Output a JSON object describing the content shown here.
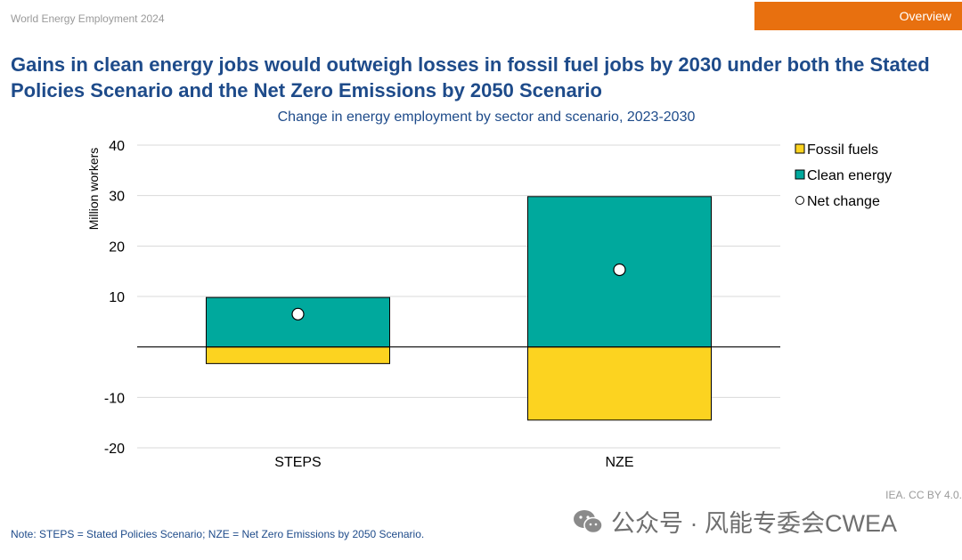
{
  "header": {
    "report_name": "World Energy Employment 2024",
    "tab_label": "Overview"
  },
  "title": "Gains in clean energy jobs would outweigh losses in fossil fuel jobs by 2030 under both the Stated Policies Scenario and the Net Zero Emissions by 2050 Scenario",
  "footer": {
    "note": "Note: STEPS = Stated Policies Scenario; NZE = Net Zero Emissions by 2050 Scenario.",
    "credit": "IEA. CC BY 4.0.",
    "watermark_text": "公众号 · 风能专委会CWEA",
    "watermark_icon": "wechat-icon"
  },
  "chart_data": {
    "type": "bar",
    "stacked": true,
    "title": "Change in energy employment by sector and scenario, 2023-2030",
    "ylabel": "Million workers",
    "xlabel": "",
    "categories": [
      "STEPS",
      "NZE"
    ],
    "series": [
      {
        "name": "Fossil fuels",
        "values": [
          -3.3,
          -14.5
        ],
        "color": "#fcd320"
      },
      {
        "name": "Clean energy",
        "values": [
          9.8,
          29.8
        ],
        "color": "#00a99d"
      }
    ],
    "markers": {
      "name": "Net change",
      "values": [
        6.5,
        15.3
      ],
      "fill": "#ffffff"
    },
    "ylim": [
      -20,
      40
    ],
    "yticks": [
      40,
      30,
      20,
      10,
      -10,
      -20
    ],
    "grid": true,
    "legend_position": "right"
  }
}
